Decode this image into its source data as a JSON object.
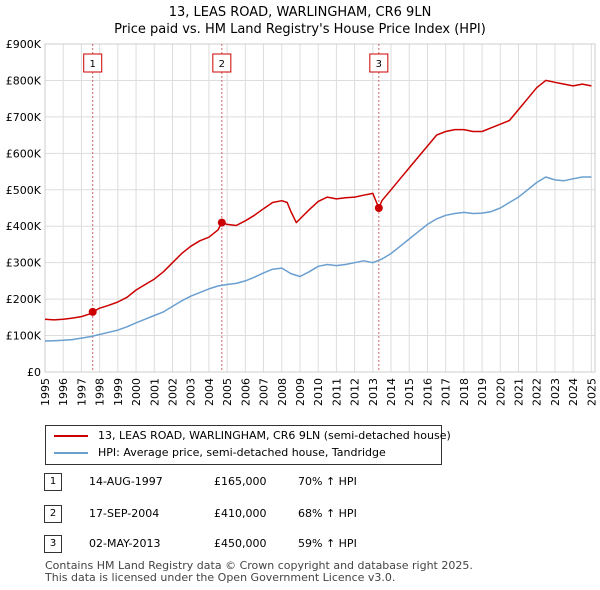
{
  "chart_data": {
    "type": "line",
    "title": "13, LEAS ROAD, WARLINGHAM, CR6 9LN",
    "subtitle": "Price paid vs. HM Land Registry's House Price Index (HPI)",
    "xlim": [
      1995,
      2025.2
    ],
    "ylim": [
      0,
      900000
    ],
    "x_ticks": [
      1995,
      1996,
      1997,
      1998,
      1999,
      2000,
      2001,
      2002,
      2003,
      2004,
      2005,
      2006,
      2007,
      2008,
      2009,
      2010,
      2011,
      2012,
      2013,
      2014,
      2015,
      2016,
      2017,
      2018,
      2019,
      2020,
      2021,
      2022,
      2023,
      2024,
      2025
    ],
    "y_ticks": [
      {
        "value": 0,
        "label": "£0"
      },
      {
        "value": 100000,
        "label": "£100K"
      },
      {
        "value": 200000,
        "label": "£200K"
      },
      {
        "value": 300000,
        "label": "£300K"
      },
      {
        "value": 400000,
        "label": "£400K"
      },
      {
        "value": 500000,
        "label": "£500K"
      },
      {
        "value": 600000,
        "label": "£600K"
      },
      {
        "value": 700000,
        "label": "£700K"
      },
      {
        "value": 800000,
        "label": "£800K"
      },
      {
        "value": 900000,
        "label": "£900K"
      }
    ],
    "grid": true,
    "series": [
      {
        "name": "13, LEAS ROAD, WARLINGHAM, CR6 9LN (semi-detached house)",
        "color": "#cc0000",
        "x": [
          1995,
          1995.5,
          1996,
          1996.5,
          1997,
          1997.5,
          1997.62,
          1998,
          1998.5,
          1999,
          1999.5,
          2000,
          2000.5,
          2001,
          2001.5,
          2002,
          2002.5,
          2003,
          2003.5,
          2004,
          2004.5,
          2004.71,
          2005,
          2005.5,
          2006,
          2006.5,
          2007,
          2007.5,
          2008,
          2008.3,
          2008.5,
          2008.8,
          2009,
          2009.5,
          2010,
          2010.5,
          2011,
          2011.5,
          2012,
          2012.5,
          2013,
          2013.33,
          2013.5,
          2014,
          2014.5,
          2015,
          2015.5,
          2016,
          2016.5,
          2017,
          2017.5,
          2018,
          2018.5,
          2019,
          2019.5,
          2020,
          2020.5,
          2021,
          2021.5,
          2022,
          2022.5,
          2023,
          2023.5,
          2024,
          2024.5,
          2025
        ],
        "values": [
          145000,
          143000,
          145000,
          148000,
          152000,
          160000,
          165000,
          175000,
          183000,
          192000,
          205000,
          225000,
          240000,
          255000,
          275000,
          300000,
          325000,
          345000,
          360000,
          370000,
          390000,
          410000,
          405000,
          402000,
          415000,
          430000,
          448000,
          465000,
          470000,
          465000,
          440000,
          410000,
          420000,
          445000,
          468000,
          480000,
          475000,
          478000,
          480000,
          485000,
          490000,
          450000,
          470000,
          500000,
          530000,
          560000,
          590000,
          620000,
          650000,
          660000,
          665000,
          665000,
          660000,
          660000,
          670000,
          680000,
          690000,
          720000,
          750000,
          780000,
          800000,
          795000,
          790000,
          785000,
          790000,
          785000
        ]
      },
      {
        "name": "HPI: Average price, semi-detached house, Tandridge",
        "color": "#6a9fd0",
        "x": [
          1995,
          1995.5,
          1996,
          1996.5,
          1997,
          1997.5,
          1998,
          1998.5,
          1999,
          1999.5,
          2000,
          2000.5,
          2001,
          2001.5,
          2002,
          2002.5,
          2003,
          2003.5,
          2004,
          2004.5,
          2005,
          2005.5,
          2006,
          2006.5,
          2007,
          2007.5,
          2008,
          2008.5,
          2009,
          2009.5,
          2010,
          2010.5,
          2011,
          2011.5,
          2012,
          2012.5,
          2013,
          2013.5,
          2014,
          2014.5,
          2015,
          2015.5,
          2016,
          2016.5,
          2017,
          2017.5,
          2018,
          2018.5,
          2019,
          2019.5,
          2020,
          2020.5,
          2021,
          2021.5,
          2022,
          2022.5,
          2023,
          2023.5,
          2024,
          2024.5,
          2025
        ],
        "values": [
          85000,
          86000,
          87000,
          89000,
          93000,
          97000,
          103000,
          109000,
          115000,
          124000,
          135000,
          145000,
          155000,
          165000,
          180000,
          195000,
          208000,
          218000,
          228000,
          236000,
          240000,
          243000,
          250000,
          260000,
          272000,
          282000,
          285000,
          270000,
          262000,
          275000,
          290000,
          295000,
          292000,
          295000,
          300000,
          305000,
          300000,
          310000,
          325000,
          345000,
          365000,
          385000,
          405000,
          420000,
          430000,
          435000,
          438000,
          435000,
          436000,
          440000,
          450000,
          465000,
          480000,
          500000,
          520000,
          535000,
          527000,
          525000,
          530000,
          535000,
          535000
        ]
      }
    ],
    "markers": [
      {
        "label": "1",
        "x": 1997.62,
        "y": 165000
      },
      {
        "label": "2",
        "x": 2004.71,
        "y": 410000
      },
      {
        "label": "3",
        "x": 2013.33,
        "y": 450000
      }
    ]
  },
  "legend": [
    {
      "label": "13, LEAS ROAD, WARLINGHAM, CR6 9LN (semi-detached house)",
      "color": "#cc0000"
    },
    {
      "label": "HPI: Average price, semi-detached house, Tandridge",
      "color": "#6a9fd0"
    }
  ],
  "sales": [
    {
      "num": "1",
      "date": "14-AUG-1997",
      "price": "£165,000",
      "hpi": "70% ↑ HPI"
    },
    {
      "num": "2",
      "date": "17-SEP-2004",
      "price": "£410,000",
      "hpi": "68% ↑ HPI"
    },
    {
      "num": "3",
      "date": "02-MAY-2013",
      "price": "£450,000",
      "hpi": "59% ↑ HPI"
    }
  ],
  "footer": {
    "line1": "Contains HM Land Registry data © Crown copyright and database right 2025.",
    "line2": "This data is licensed under the Open Government Licence v3.0."
  }
}
